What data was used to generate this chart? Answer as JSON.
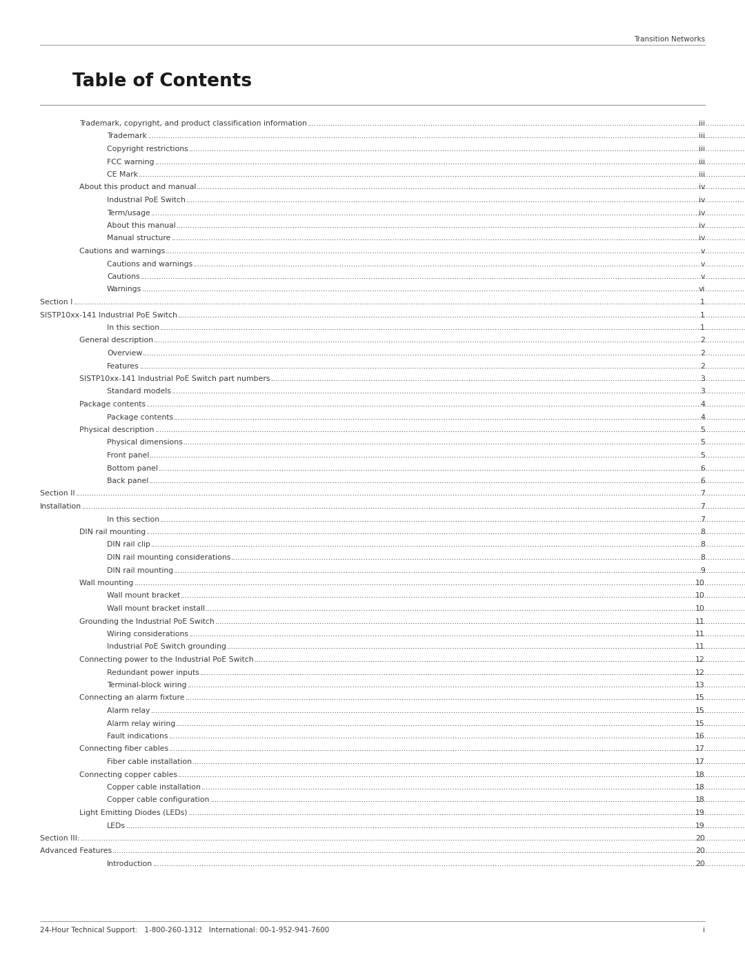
{
  "header_right": "Transition Networks",
  "title": "Table of Contents",
  "footer_left": "24-Hour Technical Support:   1-800-260-1312   International: 00-1-952-941-7600",
  "footer_right": "i",
  "background_color": "#ffffff",
  "text_color": "#3a3a3a",
  "title_color": "#1a1a1a",
  "line_color": "#888888",
  "entries": [
    {
      "text": "Trademark, copyright, and product classification information",
      "page": "iii",
      "indent": 0
    },
    {
      "text": "Trademark",
      "page": "iii",
      "indent": 1
    },
    {
      "text": "Copyright restrictions",
      "page": "iii",
      "indent": 1
    },
    {
      "text": "FCC warning",
      "page": "iii",
      "indent": 1
    },
    {
      "text": "CE Mark",
      "page": "iii",
      "indent": 1
    },
    {
      "text": "About this product and manual",
      "page": "iv",
      "indent": 0
    },
    {
      "text": "Industrial PoE Switch",
      "page": "iv",
      "indent": 1
    },
    {
      "text": "Term/usage",
      "page": "iv",
      "indent": 1
    },
    {
      "text": "About this manual",
      "page": "iv",
      "indent": 1
    },
    {
      "text": "Manual structure",
      "page": "iv",
      "indent": 1
    },
    {
      "text": "Cautions and warnings",
      "page": "v",
      "indent": 0
    },
    {
      "text": "Cautions and warnings",
      "page": "v",
      "indent": 1
    },
    {
      "text": "Cautions",
      "page": "v",
      "indent": 1
    },
    {
      "text": "Warnings",
      "page": "vi",
      "indent": 1
    },
    {
      "text": "Section I",
      "page": "1",
      "indent": -1
    },
    {
      "text": "SISTP10xx-141 Industrial PoE Switch",
      "page": "1",
      "indent": -1
    },
    {
      "text": "In this section",
      "page": "1",
      "indent": 1
    },
    {
      "text": "General description",
      "page": "2",
      "indent": 0
    },
    {
      "text": "Overview",
      "page": "2",
      "indent": 1
    },
    {
      "text": "Features",
      "page": "2",
      "indent": 1
    },
    {
      "text": "SISTP10xx-141 Industrial PoE Switch part numbers",
      "page": "3",
      "indent": 0
    },
    {
      "text": "Standard models",
      "page": "3",
      "indent": 1
    },
    {
      "text": "Package contents",
      "page": "4",
      "indent": 0
    },
    {
      "text": "Package contents",
      "page": "4",
      "indent": 1
    },
    {
      "text": "Physical description",
      "page": "5",
      "indent": 0
    },
    {
      "text": "Physical dimensions",
      "page": "5",
      "indent": 1
    },
    {
      "text": "Front panel",
      "page": "5",
      "indent": 1
    },
    {
      "text": "Bottom panel",
      "page": "6",
      "indent": 1
    },
    {
      "text": "Back panel",
      "page": "6",
      "indent": 1
    },
    {
      "text": "Section II",
      "page": "7",
      "indent": -1
    },
    {
      "text": "Installation",
      "page": "7",
      "indent": -1
    },
    {
      "text": "In this section",
      "page": "7",
      "indent": 1
    },
    {
      "text": "DIN rail mounting",
      "page": "8",
      "indent": 0
    },
    {
      "text": "DIN rail clip",
      "page": "8",
      "indent": 1
    },
    {
      "text": "DIN rail mounting considerations",
      "page": "8",
      "indent": 1
    },
    {
      "text": "DIN rail mounting",
      "page": "9",
      "indent": 1
    },
    {
      "text": "Wall mounting",
      "page": "10",
      "indent": 0
    },
    {
      "text": "Wall mount bracket",
      "page": "10",
      "indent": 1
    },
    {
      "text": "Wall mount bracket install",
      "page": "10",
      "indent": 1
    },
    {
      "text": "Grounding the Industrial PoE Switch",
      "page": "11",
      "indent": 0
    },
    {
      "text": "Wiring considerations",
      "page": "11",
      "indent": 1
    },
    {
      "text": "Industrial PoE Switch grounding",
      "page": "11",
      "indent": 1
    },
    {
      "text": "Connecting power to the Industrial PoE Switch",
      "page": "12",
      "indent": 0
    },
    {
      "text": "Redundant power inputs",
      "page": "12",
      "indent": 1
    },
    {
      "text": "Terminal-block wiring",
      "page": "13",
      "indent": 1
    },
    {
      "text": "Connecting an alarm fixture",
      "page": "15",
      "indent": 0
    },
    {
      "text": "Alarm relay",
      "page": "15",
      "indent": 1
    },
    {
      "text": "Alarm relay wiring",
      "page": "15",
      "indent": 1
    },
    {
      "text": "Fault indications",
      "page": "16",
      "indent": 1
    },
    {
      "text": "Connecting fiber cables",
      "page": "17",
      "indent": 0
    },
    {
      "text": "Fiber cable installation",
      "page": "17",
      "indent": 1
    },
    {
      "text": "Connecting copper cables",
      "page": "18",
      "indent": 0
    },
    {
      "text": "Copper cable installation",
      "page": "18",
      "indent": 1
    },
    {
      "text": "Copper cable configuration",
      "page": "18",
      "indent": 1
    },
    {
      "text": "Light Emitting Diodes (LEDs)",
      "page": "19",
      "indent": 0
    },
    {
      "text": "LEDs",
      "page": "19",
      "indent": 1
    },
    {
      "text": "Section III:",
      "page": "20",
      "indent": -1
    },
    {
      "text": "Advanced Features",
      "page": "20",
      "indent": -1
    },
    {
      "text": "Introduction",
      "page": "20",
      "indent": 1
    }
  ]
}
